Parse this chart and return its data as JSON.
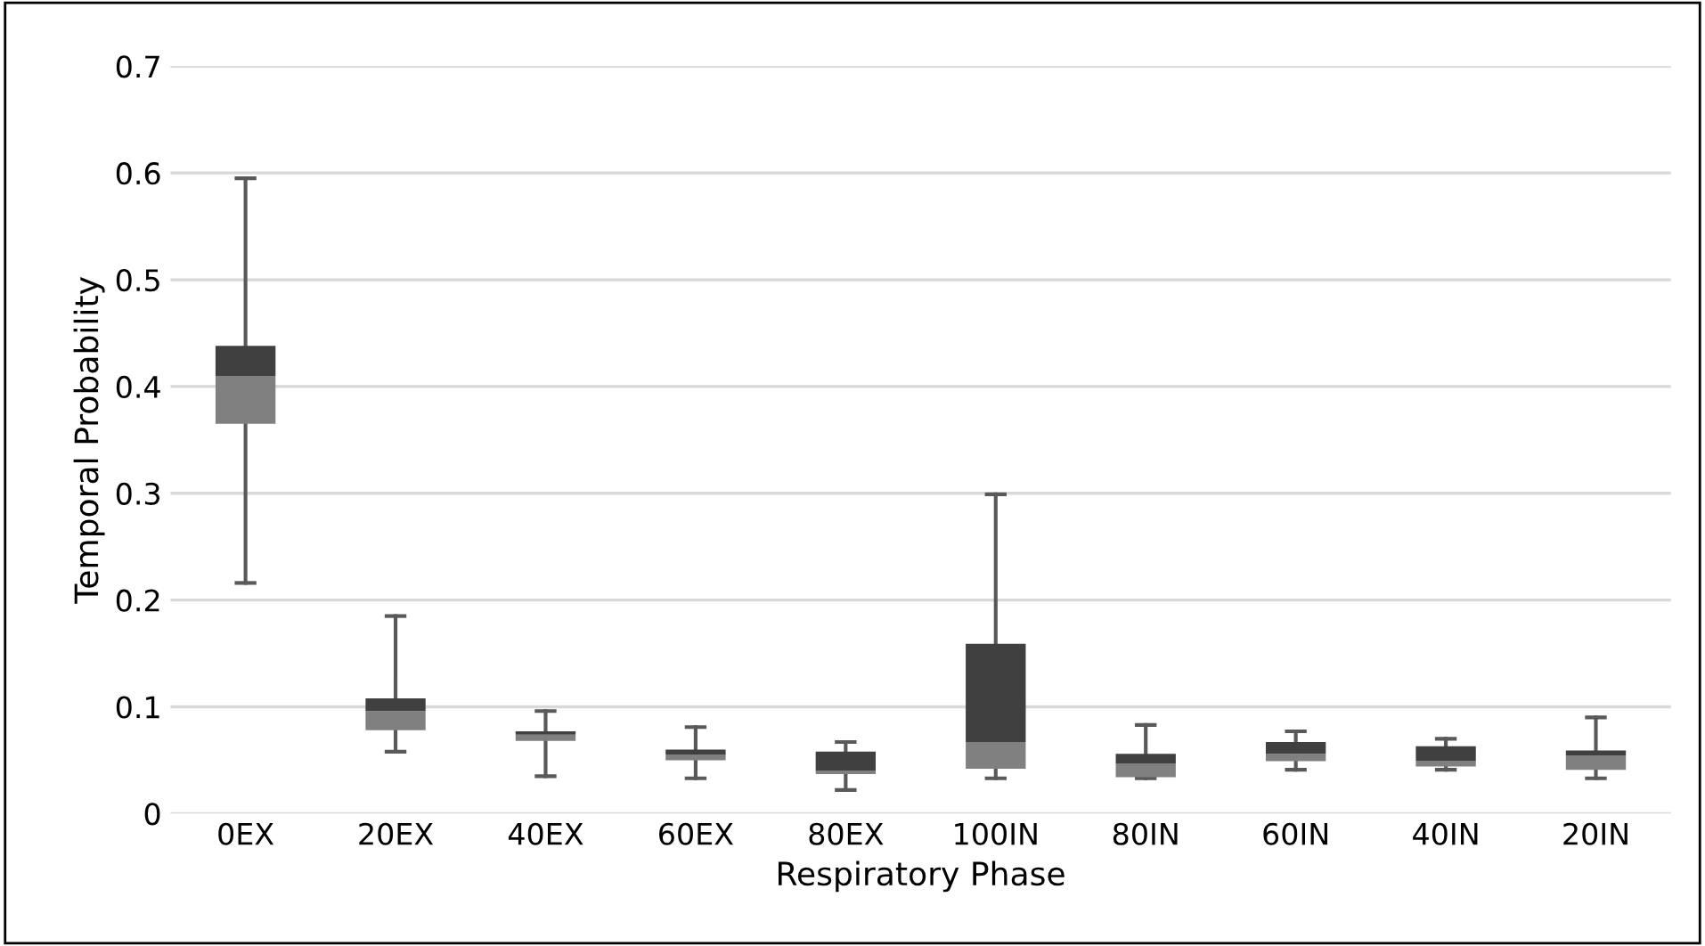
{
  "chart_data": {
    "type": "box",
    "xlabel": "Respiratory Phase",
    "ylabel": "Temporal Probability",
    "categories": [
      "0EX",
      "20EX",
      "40EX",
      "60EX",
      "80EX",
      "100IN",
      "80IN",
      "60IN",
      "40IN",
      "20IN"
    ],
    "series": [
      {
        "color": "#404040",
        "colors": [
          "#808080",
          "#808080",
          "#808080",
          "#808080",
          "#808080",
          "#808080",
          "#808080",
          "#808080",
          "#808080",
          "#808080"
        ],
        "boxes": [
          {
            "low": 0.216,
            "q1": 0.365,
            "median": 0.41,
            "q3": 0.438,
            "high": 0.595
          },
          {
            "low": 0.058,
            "q1": 0.078,
            "median": 0.096,
            "q3": 0.108,
            "high": 0.185
          },
          {
            "low": 0.035,
            "q1": 0.068,
            "median": 0.074,
            "q3": 0.077,
            "high": 0.096
          },
          {
            "low": 0.033,
            "q1": 0.05,
            "median": 0.055,
            "q3": 0.06,
            "high": 0.081
          },
          {
            "low": 0.022,
            "q1": 0.037,
            "median": 0.04,
            "q3": 0.058,
            "high": 0.067
          },
          {
            "low": 0.033,
            "q1": 0.042,
            "median": 0.067,
            "q3": 0.159,
            "high": 0.299
          },
          {
            "low": 0.033,
            "q1": 0.034,
            "median": 0.047,
            "q3": 0.056,
            "high": 0.083
          },
          {
            "low": 0.041,
            "q1": 0.049,
            "median": 0.056,
            "q3": 0.067,
            "high": 0.077
          },
          {
            "low": 0.041,
            "q1": 0.044,
            "median": 0.049,
            "q3": 0.063,
            "high": 0.07
          },
          {
            "low": 0.033,
            "q1": 0.041,
            "median": 0.054,
            "q3": 0.059,
            "high": 0.09
          }
        ]
      }
    ],
    "ylim": [
      0,
      0.7
    ],
    "yticks": [
      0,
      0.1,
      0.2,
      0.3,
      0.4,
      0.5,
      0.6,
      0.7
    ],
    "grid": "y",
    "legend": false
  }
}
